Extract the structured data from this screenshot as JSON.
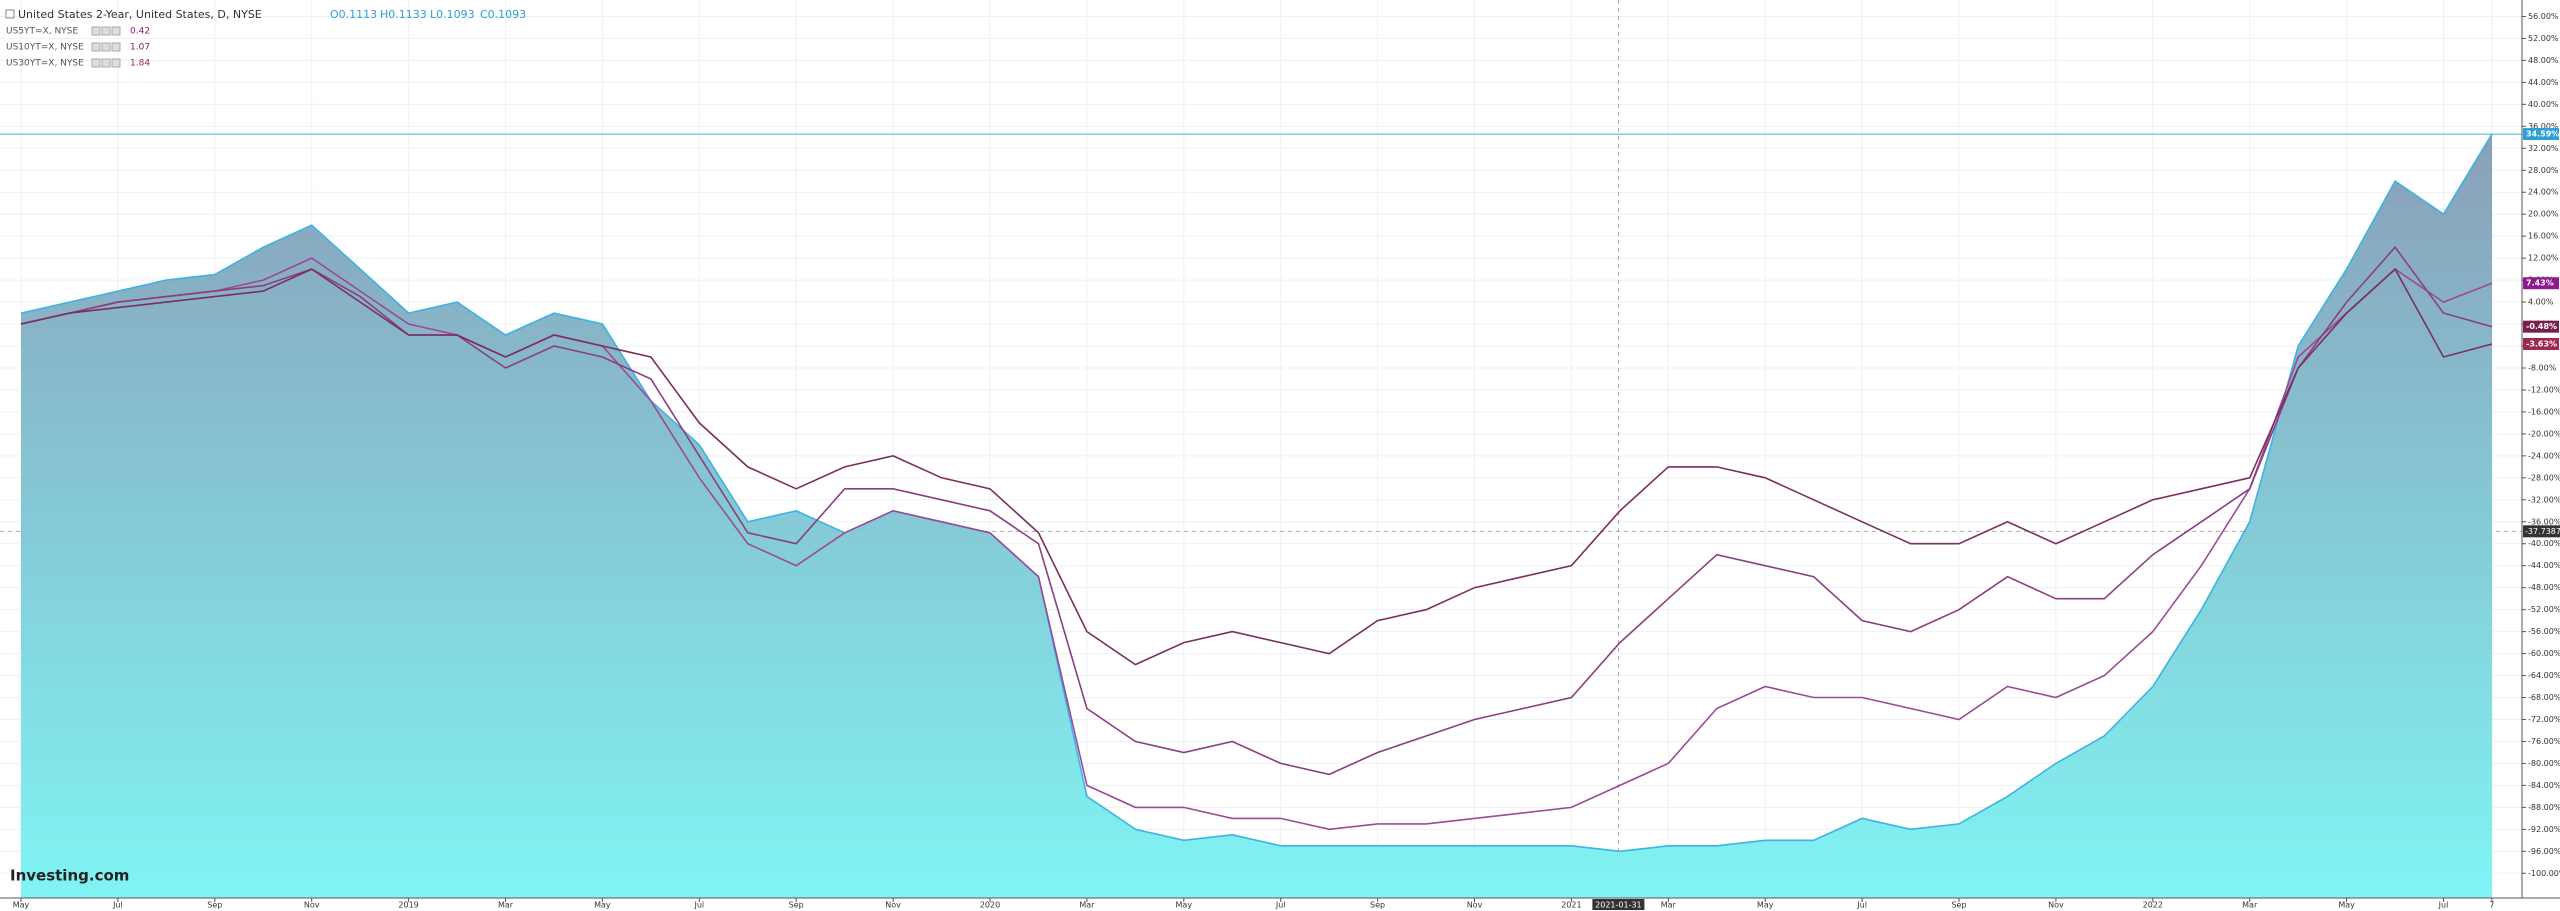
{
  "header": {
    "title": "United States 2-Year, United States, D, NYSE",
    "ohlc": [
      "O0.1113",
      "H0.1133",
      "L0.1093",
      "C0.1093"
    ],
    "compare": [
      {
        "name": "US5YT=X, NYSE",
        "value": 0.42
      },
      {
        "name": "US10YT=X, NYSE",
        "value": 1.07
      },
      {
        "name": "US30YT=X, NYSE",
        "value": 1.84
      }
    ]
  },
  "logo": "Investing.com",
  "chart_data": {
    "type": "line",
    "categories": [
      "May",
      null,
      "Jul",
      null,
      "Sep",
      null,
      "Nov",
      null,
      "2019",
      null,
      "Mar",
      null,
      "May",
      null,
      "Jul",
      null,
      "Sep",
      null,
      "Nov",
      null,
      "2020",
      null,
      "Mar",
      null,
      "May",
      null,
      "Jul",
      null,
      "Sep",
      null,
      "Nov",
      null,
      "2021",
      null,
      "Mar",
      null,
      "May",
      null,
      "Jul",
      null,
      "Sep",
      null,
      "Nov",
      null,
      "2022",
      null,
      "Mar",
      null,
      "May",
      null,
      "Jul",
      "7"
    ],
    "series": [
      {
        "name": "United States 2-Year",
        "style": "area",
        "color": "#3bb3e4",
        "last_label": "34.59%",
        "label_color": "#2a9fd8",
        "values": [
          2,
          4,
          6,
          8,
          9,
          14,
          18,
          10,
          2,
          4,
          -2,
          2,
          0,
          -14,
          -22,
          -36,
          -34,
          -38,
          -34,
          -36,
          -38,
          -46,
          -86,
          -92,
          -94,
          -93,
          -95,
          -95,
          -95,
          -95,
          -95,
          -95,
          -95,
          -96,
          -95,
          -95,
          -94,
          -94,
          -90,
          -92,
          -91,
          -86,
          -80,
          -75,
          -66,
          -52,
          -36,
          -4,
          10,
          26,
          20,
          34.59
        ]
      },
      {
        "name": "US5YT=X, NYSE",
        "style": "line",
        "color": "#9b4a95",
        "last_label": "7.43%",
        "label_color": "#8e1a8e",
        "values": [
          0,
          2,
          4,
          5,
          6,
          8,
          12,
          6,
          0,
          -2,
          -6,
          -2,
          -4,
          -14,
          -28,
          -40,
          -44,
          -38,
          -34,
          -36,
          -38,
          -46,
          -84,
          -88,
          -88,
          -90,
          -90,
          -92,
          -91,
          -91,
          -90,
          -89,
          -88,
          -84,
          -80,
          -70,
          -66,
          -68,
          -68,
          -70,
          -72,
          -66,
          -68,
          -64,
          -56,
          -44,
          -30,
          -6,
          2,
          10,
          4,
          7.43
        ]
      },
      {
        "name": "US10YT=X, NYSE",
        "style": "line",
        "color": "#8a3f7e",
        "last_label": "-0.48%",
        "label_color": "#7a1f4a",
        "values": [
          0,
          2,
          4,
          5,
          6,
          7,
          10,
          5,
          -2,
          -2,
          -8,
          -4,
          -6,
          -10,
          -24,
          -38,
          -40,
          -30,
          -30,
          -32,
          -34,
          -40,
          -70,
          -76,
          -78,
          -76,
          -80,
          -82,
          -78,
          -75,
          -72,
          -70,
          -68,
          -58,
          -50,
          -42,
          -44,
          -46,
          -54,
          -56,
          -52,
          -46,
          -50,
          -50,
          -42,
          -36,
          -30,
          -8,
          4,
          14,
          2,
          -0.48
        ]
      },
      {
        "name": "US30YT=X, NYSE",
        "style": "line",
        "color": "#7a2f5f",
        "last_label": "-3.63%",
        "label_color": "#a0284f",
        "values": [
          0,
          2,
          3,
          4,
          5,
          6,
          10,
          4,
          -2,
          -2,
          -6,
          -2,
          -4,
          -6,
          -18,
          -26,
          -30,
          -26,
          -24,
          -28,
          -30,
          -38,
          -56,
          -62,
          -58,
          -56,
          -58,
          -60,
          -54,
          -52,
          -48,
          -46,
          -44,
          -34,
          -26,
          -26,
          -28,
          -32,
          -36,
          -40,
          -40,
          -36,
          -40,
          -36,
          -32,
          -30,
          -28,
          -8,
          2,
          10,
          -6,
          -3.63
        ]
      }
    ],
    "ylim": [
      -104.5,
      59
    ],
    "yticks": [
      {
        "value": 56,
        "label": "56.00%"
      },
      {
        "value": 52,
        "label": "52.00%"
      },
      {
        "value": 48,
        "label": "48.00%"
      },
      {
        "value": 44,
        "label": "44.00%"
      },
      {
        "value": 40,
        "label": "40.00%"
      },
      {
        "value": 36,
        "label": "36.00%"
      },
      {
        "value": 32,
        "label": "32.00%"
      },
      {
        "value": 28,
        "label": "28.00%"
      },
      {
        "value": 24,
        "label": "24.00%"
      },
      {
        "value": 20,
        "label": "20.00%"
      },
      {
        "value": 16,
        "label": "16.00%"
      },
      {
        "value": 12,
        "label": "12.00%"
      },
      {
        "value": 8,
        "label": "8.00%"
      },
      {
        "value": 4,
        "label": "4.00%"
      },
      {
        "value": 0,
        "label": "0.00%"
      },
      {
        "value": -4,
        "label": "-4.00%"
      },
      {
        "value": -8,
        "label": "-8.00%"
      },
      {
        "value": -12,
        "label": "-12.00%"
      },
      {
        "value": -16,
        "label": "-16.00%"
      },
      {
        "value": -20,
        "label": "-20.00%"
      },
      {
        "value": -24,
        "label": "-24.00%"
      },
      {
        "value": -28,
        "label": "-28.00%"
      },
      {
        "value": -32,
        "label": "-32.00%"
      },
      {
        "value": -36,
        "label": "-36.00%"
      },
      {
        "value": -40,
        "label": "-40.00%"
      },
      {
        "value": -44,
        "label": "-44.00%"
      },
      {
        "value": -48,
        "label": "-48.00%"
      },
      {
        "value": -52,
        "label": "-52.00%"
      },
      {
        "value": -56,
        "label": "-56.00%"
      },
      {
        "value": -60,
        "label": "-60.00%"
      },
      {
        "value": -64,
        "label": "-64.00%"
      },
      {
        "value": -68,
        "label": "-68.00%"
      },
      {
        "value": -72,
        "label": "-72.00%"
      },
      {
        "value": -76,
        "label": "-76.00%"
      },
      {
        "value": -80,
        "label": "-80.00%"
      },
      {
        "value": -84,
        "label": "-84.00%"
      },
      {
        "value": -88,
        "label": "-88.00%"
      },
      {
        "value": -92,
        "label": "-92.00%"
      },
      {
        "value": -96,
        "label": "-96.00%"
      },
      {
        "value": -100,
        "label": "-100.00%"
      }
    ],
    "grid": true,
    "crosshair": {
      "value": -37.7387,
      "date": "2021-01-31"
    }
  }
}
